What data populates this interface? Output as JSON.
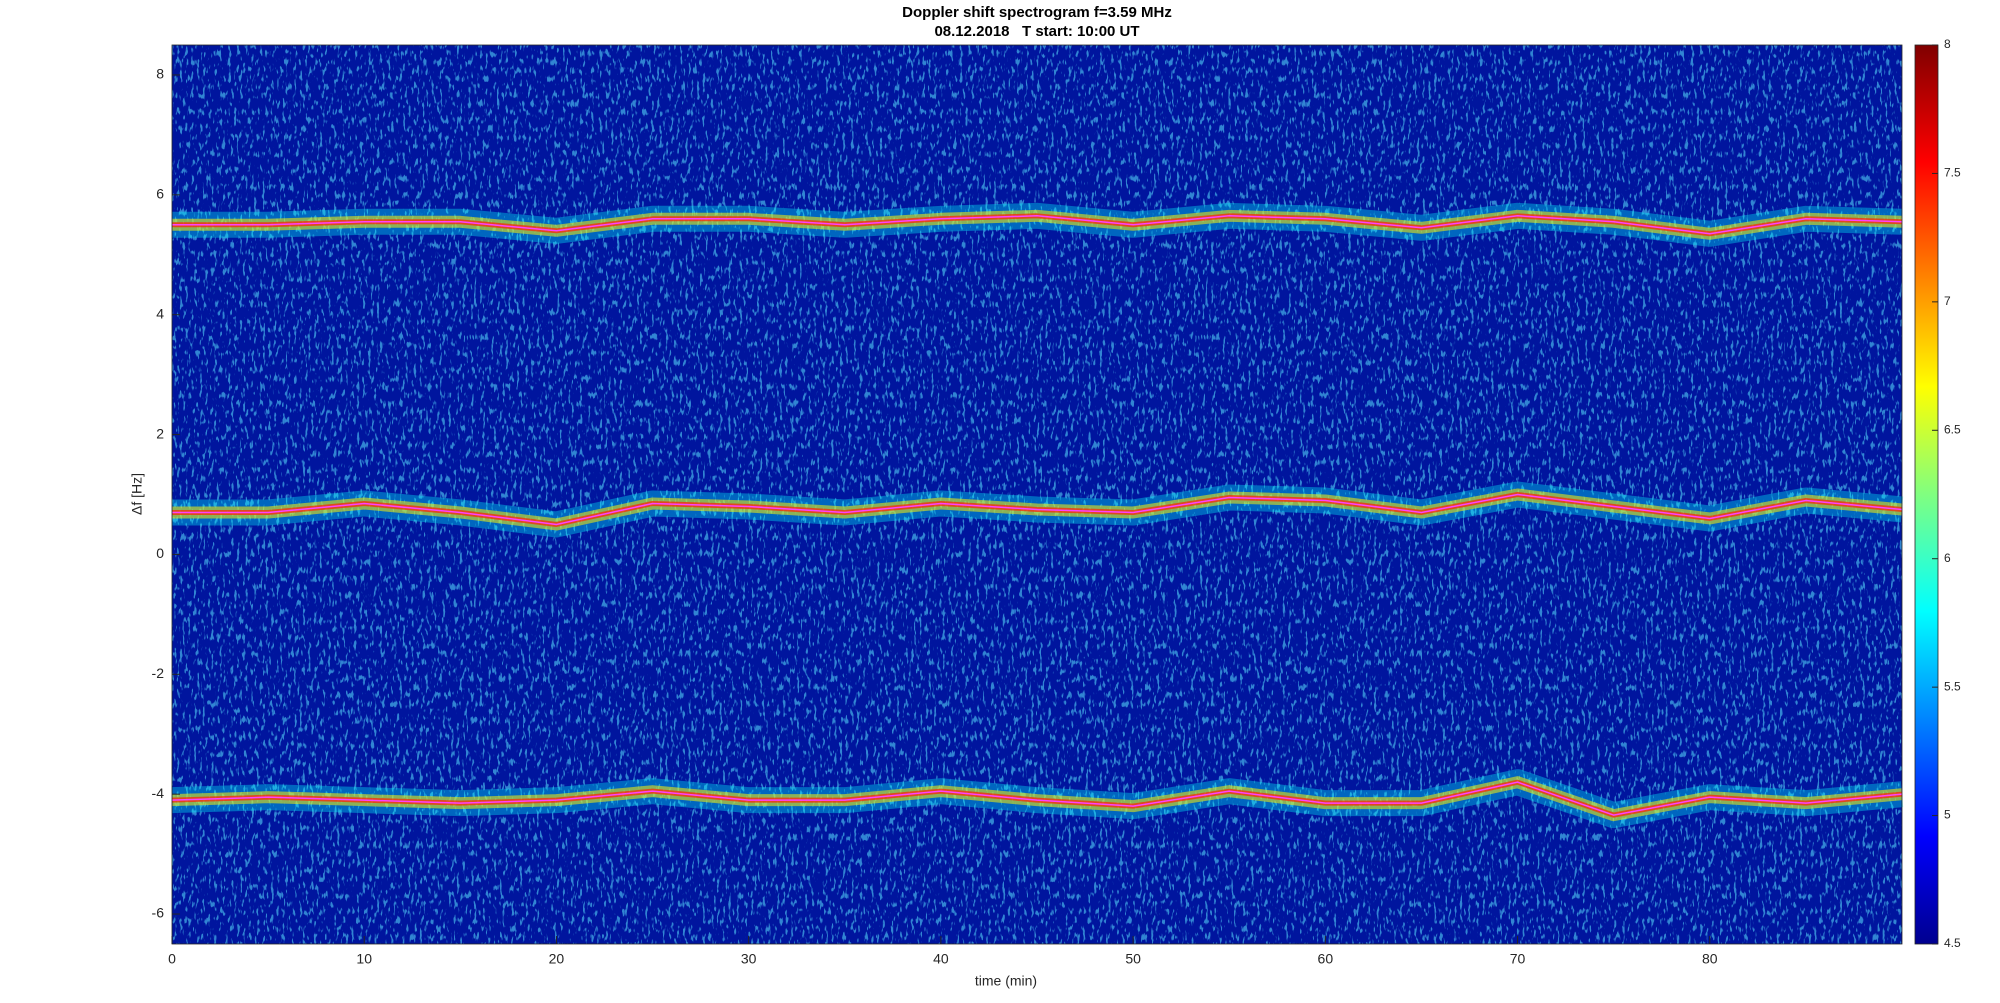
{
  "chart_data": {
    "type": "spectrogram",
    "title": "Doppler shift spectrogram f=3.59 MHz",
    "subtitle": "08.12.2018   T start: 10:00 UT",
    "x_label": "time (min)",
    "y_label": "Δf [Hz]",
    "x": [
      0,
      5,
      10,
      15,
      20,
      25,
      30,
      35,
      40,
      45,
      50,
      55,
      60,
      65,
      70,
      75,
      80,
      85,
      90
    ],
    "series": [
      {
        "color": "#ff40ff",
        "values": [
          5.5,
          5.5,
          5.55,
          5.55,
          5.4,
          5.6,
          5.6,
          5.5,
          5.6,
          5.65,
          5.5,
          5.65,
          5.6,
          5.45,
          5.65,
          5.55,
          5.35,
          5.6,
          5.55
        ]
      },
      {
        "color": "#ff40ff",
        "values": [
          0.7,
          0.7,
          0.85,
          0.7,
          0.5,
          0.85,
          0.8,
          0.7,
          0.85,
          0.75,
          0.7,
          0.95,
          0.9,
          0.7,
          1.0,
          0.8,
          0.6,
          0.9,
          0.75
        ]
      },
      {
        "color": "#ff40ff",
        "values": [
          -4.1,
          -4.05,
          -4.1,
          -4.15,
          -4.1,
          -3.95,
          -4.1,
          -4.1,
          -3.95,
          -4.1,
          -4.2,
          -3.95,
          -4.15,
          -4.15,
          -3.8,
          -4.35,
          -4.05,
          -4.15,
          -4.0
        ]
      }
    ],
    "xlim": [
      0,
      90
    ],
    "xticks": [
      0,
      10,
      20,
      30,
      40,
      50,
      60,
      70,
      80
    ],
    "ylim": [
      -6.5,
      8.5
    ],
    "yticks": [
      -6,
      -4,
      -2,
      0,
      2,
      4,
      6,
      8
    ],
    "clim": [
      4.5,
      8
    ],
    "cticks": [
      4.5,
      5,
      5.5,
      6,
      6.5,
      7,
      7.5,
      8
    ]
  }
}
